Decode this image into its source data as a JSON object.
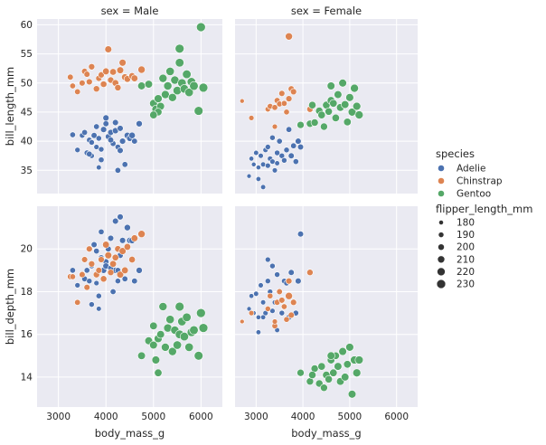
{
  "chart_data": {
    "type": "scatter",
    "facet": {
      "columns": [
        "sex = Male",
        "sex = Female"
      ],
      "rows": [
        "bill_length_mm",
        "bill_depth_mm"
      ]
    },
    "xlabel": "body_mass_g",
    "x_ticks": [
      3000,
      4000,
      5000,
      6000
    ],
    "xlim": [
      2550,
      6450
    ],
    "row_axes": [
      {
        "ylabel": "bill_length_mm",
        "ylim": [
          31,
          61
        ],
        "ticks": [
          35,
          40,
          45,
          50,
          55,
          60
        ]
      },
      {
        "ylabel": "bill_depth_mm",
        "ylim": [
          12.6,
          22.0
        ],
        "ticks": [
          14,
          16,
          18,
          20
        ]
      }
    ],
    "grid": true,
    "legend": {
      "position": "right",
      "hue_title": "species",
      "hue_entries": [
        {
          "label": "Adelie",
          "color": "#4c72b0"
        },
        {
          "label": "Chinstrap",
          "color": "#dd8452"
        },
        {
          "label": "Gentoo",
          "color": "#55a868"
        }
      ],
      "size_title": "flipper_length_mm",
      "size_entries": [
        {
          "label": "180",
          "value": 180
        },
        {
          "label": "190",
          "value": 190
        },
        {
          "label": "200",
          "value": 200
        },
        {
          "label": "210",
          "value": 210
        },
        {
          "label": "220",
          "value": 220
        },
        {
          "label": "230",
          "value": 230
        }
      ]
    },
    "species_colors": {
      "Adelie": "#4c72b0",
      "Chinstrap": "#dd8452",
      "Gentoo": "#55a868"
    },
    "points": {
      "Male": {
        "Adelie": [
          [
            3300,
            41.1,
            19.0,
            192
          ],
          [
            3500,
            41.0,
            18.8,
            190
          ],
          [
            3550,
            41.5,
            18.6,
            193
          ],
          [
            3600,
            38.0,
            19.0,
            192
          ],
          [
            3650,
            40.2,
            18.5,
            190
          ],
          [
            3700,
            37.5,
            19.2,
            188
          ],
          [
            3750,
            41.0,
            20.2,
            195
          ],
          [
            3800,
            39.0,
            18.4,
            187
          ],
          [
            3850,
            40.5,
            17.8,
            191
          ],
          [
            3900,
            38.6,
            19.6,
            190
          ],
          [
            3950,
            42.0,
            19.0,
            197
          ],
          [
            4000,
            43.0,
            19.4,
            195
          ],
          [
            4000,
            44.0,
            19.2,
            198
          ],
          [
            4050,
            40.8,
            20.0,
            195
          ],
          [
            4100,
            41.5,
            20.5,
            196
          ],
          [
            4150,
            39.6,
            18.0,
            193
          ],
          [
            4200,
            43.2,
            21.3,
            197
          ],
          [
            4200,
            41.8,
            19.0,
            198
          ],
          [
            4250,
            39.0,
            18.5,
            191
          ],
          [
            4300,
            42.2,
            21.5,
            196
          ],
          [
            4350,
            40.0,
            20.4,
            197
          ],
          [
            4400,
            36.0,
            18.6,
            193
          ],
          [
            4450,
            41.0,
            21.0,
            200
          ],
          [
            4500,
            40.5,
            20.4,
            198
          ],
          [
            4600,
            40.0,
            18.5,
            194
          ],
          [
            4700,
            43.0,
            19.0,
            199
          ],
          [
            3400,
            38.5,
            18.3,
            188
          ],
          [
            3700,
            39.8,
            17.4,
            190
          ],
          [
            3800,
            42.5,
            19.9,
            193
          ],
          [
            3900,
            36.8,
            20.8,
            192
          ],
          [
            4100,
            40.2,
            19.1,
            195
          ],
          [
            4300,
            38.4,
            19.7,
            196
          ],
          [
            4550,
            41.0,
            20.4,
            201
          ],
          [
            3850,
            35.5,
            17.2,
            185
          ],
          [
            4250,
            35.0,
            19.0,
            193
          ],
          [
            3650,
            37.8,
            20.0,
            194
          ]
        ],
        "Chinstrap": [
          [
            3250,
            51.0,
            18.7,
            195
          ],
          [
            3300,
            49.5,
            18.7,
            193
          ],
          [
            3400,
            48.5,
            17.5,
            194
          ],
          [
            3500,
            50.0,
            18.8,
            196
          ],
          [
            3550,
            52.0,
            19.5,
            197
          ],
          [
            3600,
            51.5,
            18.2,
            196
          ],
          [
            3650,
            50.2,
            20.0,
            198
          ],
          [
            3700,
            52.8,
            19.3,
            199
          ],
          [
            3800,
            49.0,
            18.8,
            200
          ],
          [
            3850,
            50.8,
            19.0,
            197
          ],
          [
            3900,
            51.4,
            19.5,
            198
          ],
          [
            3950,
            49.8,
            18.6,
            201
          ],
          [
            4000,
            52.0,
            20.2,
            205
          ],
          [
            4050,
            55.8,
            19.7,
            207
          ],
          [
            4100,
            50.5,
            18.9,
            200
          ],
          [
            4150,
            51.9,
            19.3,
            204
          ],
          [
            4200,
            50.0,
            19.6,
            203
          ],
          [
            4250,
            49.2,
            20.0,
            201
          ],
          [
            4300,
            52.2,
            18.8,
            206
          ],
          [
            4350,
            53.5,
            19.9,
            207
          ],
          [
            4400,
            51.0,
            19.0,
            205
          ],
          [
            4450,
            50.7,
            20.1,
            204
          ],
          [
            4550,
            51.2,
            19.5,
            202
          ],
          [
            4600,
            50.8,
            20.5,
            205
          ],
          [
            4750,
            52.3,
            20.7,
            210
          ]
        ],
        "Gentoo": [
          [
            4750,
            49.5,
            15.0,
            215
          ],
          [
            4900,
            49.8,
            15.7,
            216
          ],
          [
            5000,
            46.5,
            15.5,
            217
          ],
          [
            5050,
            45.5,
            14.8,
            218
          ],
          [
            5100,
            47.3,
            15.8,
            219
          ],
          [
            5150,
            46.0,
            16.0,
            216
          ],
          [
            5200,
            50.8,
            17.3,
            221
          ],
          [
            5250,
            48.0,
            15.4,
            220
          ],
          [
            5300,
            49.5,
            16.3,
            222
          ],
          [
            5350,
            52.0,
            16.7,
            223
          ],
          [
            5400,
            47.5,
            15.2,
            221
          ],
          [
            5450,
            50.5,
            16.2,
            222
          ],
          [
            5500,
            48.7,
            15.5,
            224
          ],
          [
            5550,
            53.5,
            16.0,
            226
          ],
          [
            5600,
            50.0,
            16.6,
            225
          ],
          [
            5650,
            49.0,
            15.9,
            225
          ],
          [
            5700,
            51.5,
            16.8,
            226
          ],
          [
            5750,
            48.4,
            15.4,
            224
          ],
          [
            5800,
            50.2,
            16.1,
            226
          ],
          [
            5850,
            49.5,
            16.2,
            227
          ],
          [
            5950,
            45.2,
            15.0,
            228
          ],
          [
            6000,
            59.6,
            17.0,
            230
          ],
          [
            6050,
            49.2,
            16.3,
            230
          ],
          [
            5550,
            55.9,
            17.3,
            229
          ],
          [
            5100,
            45.0,
            14.2,
            214
          ],
          [
            5000,
            44.5,
            16.4,
            215
          ]
        ]
      },
      "Female": {
        "Adelie": [
          [
            2900,
            37.0,
            17.8,
            182
          ],
          [
            2950,
            36.0,
            17.0,
            180
          ],
          [
            3000,
            38.0,
            17.9,
            185
          ],
          [
            3050,
            35.5,
            16.8,
            181
          ],
          [
            3100,
            37.5,
            18.3,
            186
          ],
          [
            3150,
            36.0,
            17.5,
            185
          ],
          [
            3200,
            38.5,
            17.0,
            187
          ],
          [
            3250,
            39.0,
            18.5,
            189
          ],
          [
            3300,
            37.0,
            18.0,
            188
          ],
          [
            3350,
            36.5,
            17.1,
            187
          ],
          [
            3400,
            35.0,
            17.5,
            186
          ],
          [
            3450,
            38.0,
            18.8,
            190
          ],
          [
            3500,
            40.0,
            18.0,
            192
          ],
          [
            3550,
            37.5,
            17.0,
            190
          ],
          [
            3600,
            36.7,
            18.5,
            189
          ],
          [
            3650,
            38.5,
            18.4,
            191
          ],
          [
            3700,
            42.0,
            16.8,
            193
          ],
          [
            3750,
            37.5,
            18.9,
            195
          ],
          [
            3800,
            39.2,
            17.5,
            193
          ],
          [
            3850,
            36.5,
            17.0,
            192
          ],
          [
            3900,
            40.0,
            18.5,
            196
          ],
          [
            3950,
            39.0,
            20.7,
            195
          ],
          [
            2850,
            34.0,
            17.2,
            178
          ],
          [
            3050,
            33.5,
            16.1,
            183
          ],
          [
            3250,
            35.8,
            19.5,
            188
          ],
          [
            3450,
            36.2,
            16.2,
            184
          ],
          [
            3150,
            32.1,
            16.8,
            184
          ],
          [
            3350,
            40.6,
            19.2,
            190
          ]
        ],
        "Chinstrap": [
          [
            2700,
            46.9,
            16.6,
            178
          ],
          [
            2900,
            44.0,
            17.0,
            187
          ],
          [
            3250,
            45.5,
            17.2,
            190
          ],
          [
            3300,
            46.0,
            17.8,
            192
          ],
          [
            3400,
            45.8,
            16.4,
            193
          ],
          [
            3450,
            47.0,
            17.5,
            195
          ],
          [
            3500,
            46.4,
            18.0,
            194
          ],
          [
            3550,
            48.2,
            17.6,
            196
          ],
          [
            3600,
            46.5,
            17.3,
            193
          ],
          [
            3650,
            45.0,
            16.7,
            192
          ],
          [
            3700,
            47.3,
            18.5,
            198
          ],
          [
            3750,
            49.0,
            16.9,
            197
          ],
          [
            3700,
            58.0,
            17.8,
            210
          ],
          [
            3400,
            42.5,
            16.6,
            187
          ],
          [
            4150,
            45.5,
            18.9,
            199
          ],
          [
            3800,
            48.5,
            17.5,
            198
          ]
        ],
        "Gentoo": [
          [
            3950,
            42.8,
            14.2,
            209
          ],
          [
            4150,
            43.0,
            13.8,
            210
          ],
          [
            4250,
            43.2,
            14.4,
            211
          ],
          [
            4350,
            45.2,
            13.7,
            212
          ],
          [
            4400,
            44.5,
            14.5,
            213
          ],
          [
            4500,
            46.2,
            14.1,
            214
          ],
          [
            4550,
            45.1,
            13.9,
            212
          ],
          [
            4600,
            47.0,
            14.8,
            215
          ],
          [
            4650,
            46.5,
            14.2,
            214
          ],
          [
            4700,
            44.0,
            15.0,
            213
          ],
          [
            4750,
            48.0,
            14.5,
            216
          ],
          [
            4800,
            45.8,
            13.8,
            215
          ],
          [
            4850,
            50.0,
            15.2,
            217
          ],
          [
            4900,
            46.3,
            14.0,
            216
          ],
          [
            4950,
            43.3,
            14.6,
            214
          ],
          [
            5000,
            47.5,
            15.4,
            218
          ],
          [
            5050,
            45.0,
            13.2,
            217
          ],
          [
            5100,
            49.1,
            14.8,
            220
          ],
          [
            5150,
            46.0,
            14.2,
            219
          ],
          [
            5200,
            44.5,
            14.8,
            220
          ],
          [
            4450,
            42.5,
            13.5,
            210
          ],
          [
            4200,
            46.2,
            14.1,
            212
          ],
          [
            4600,
            49.5,
            15.0,
            216
          ]
        ]
      }
    }
  }
}
